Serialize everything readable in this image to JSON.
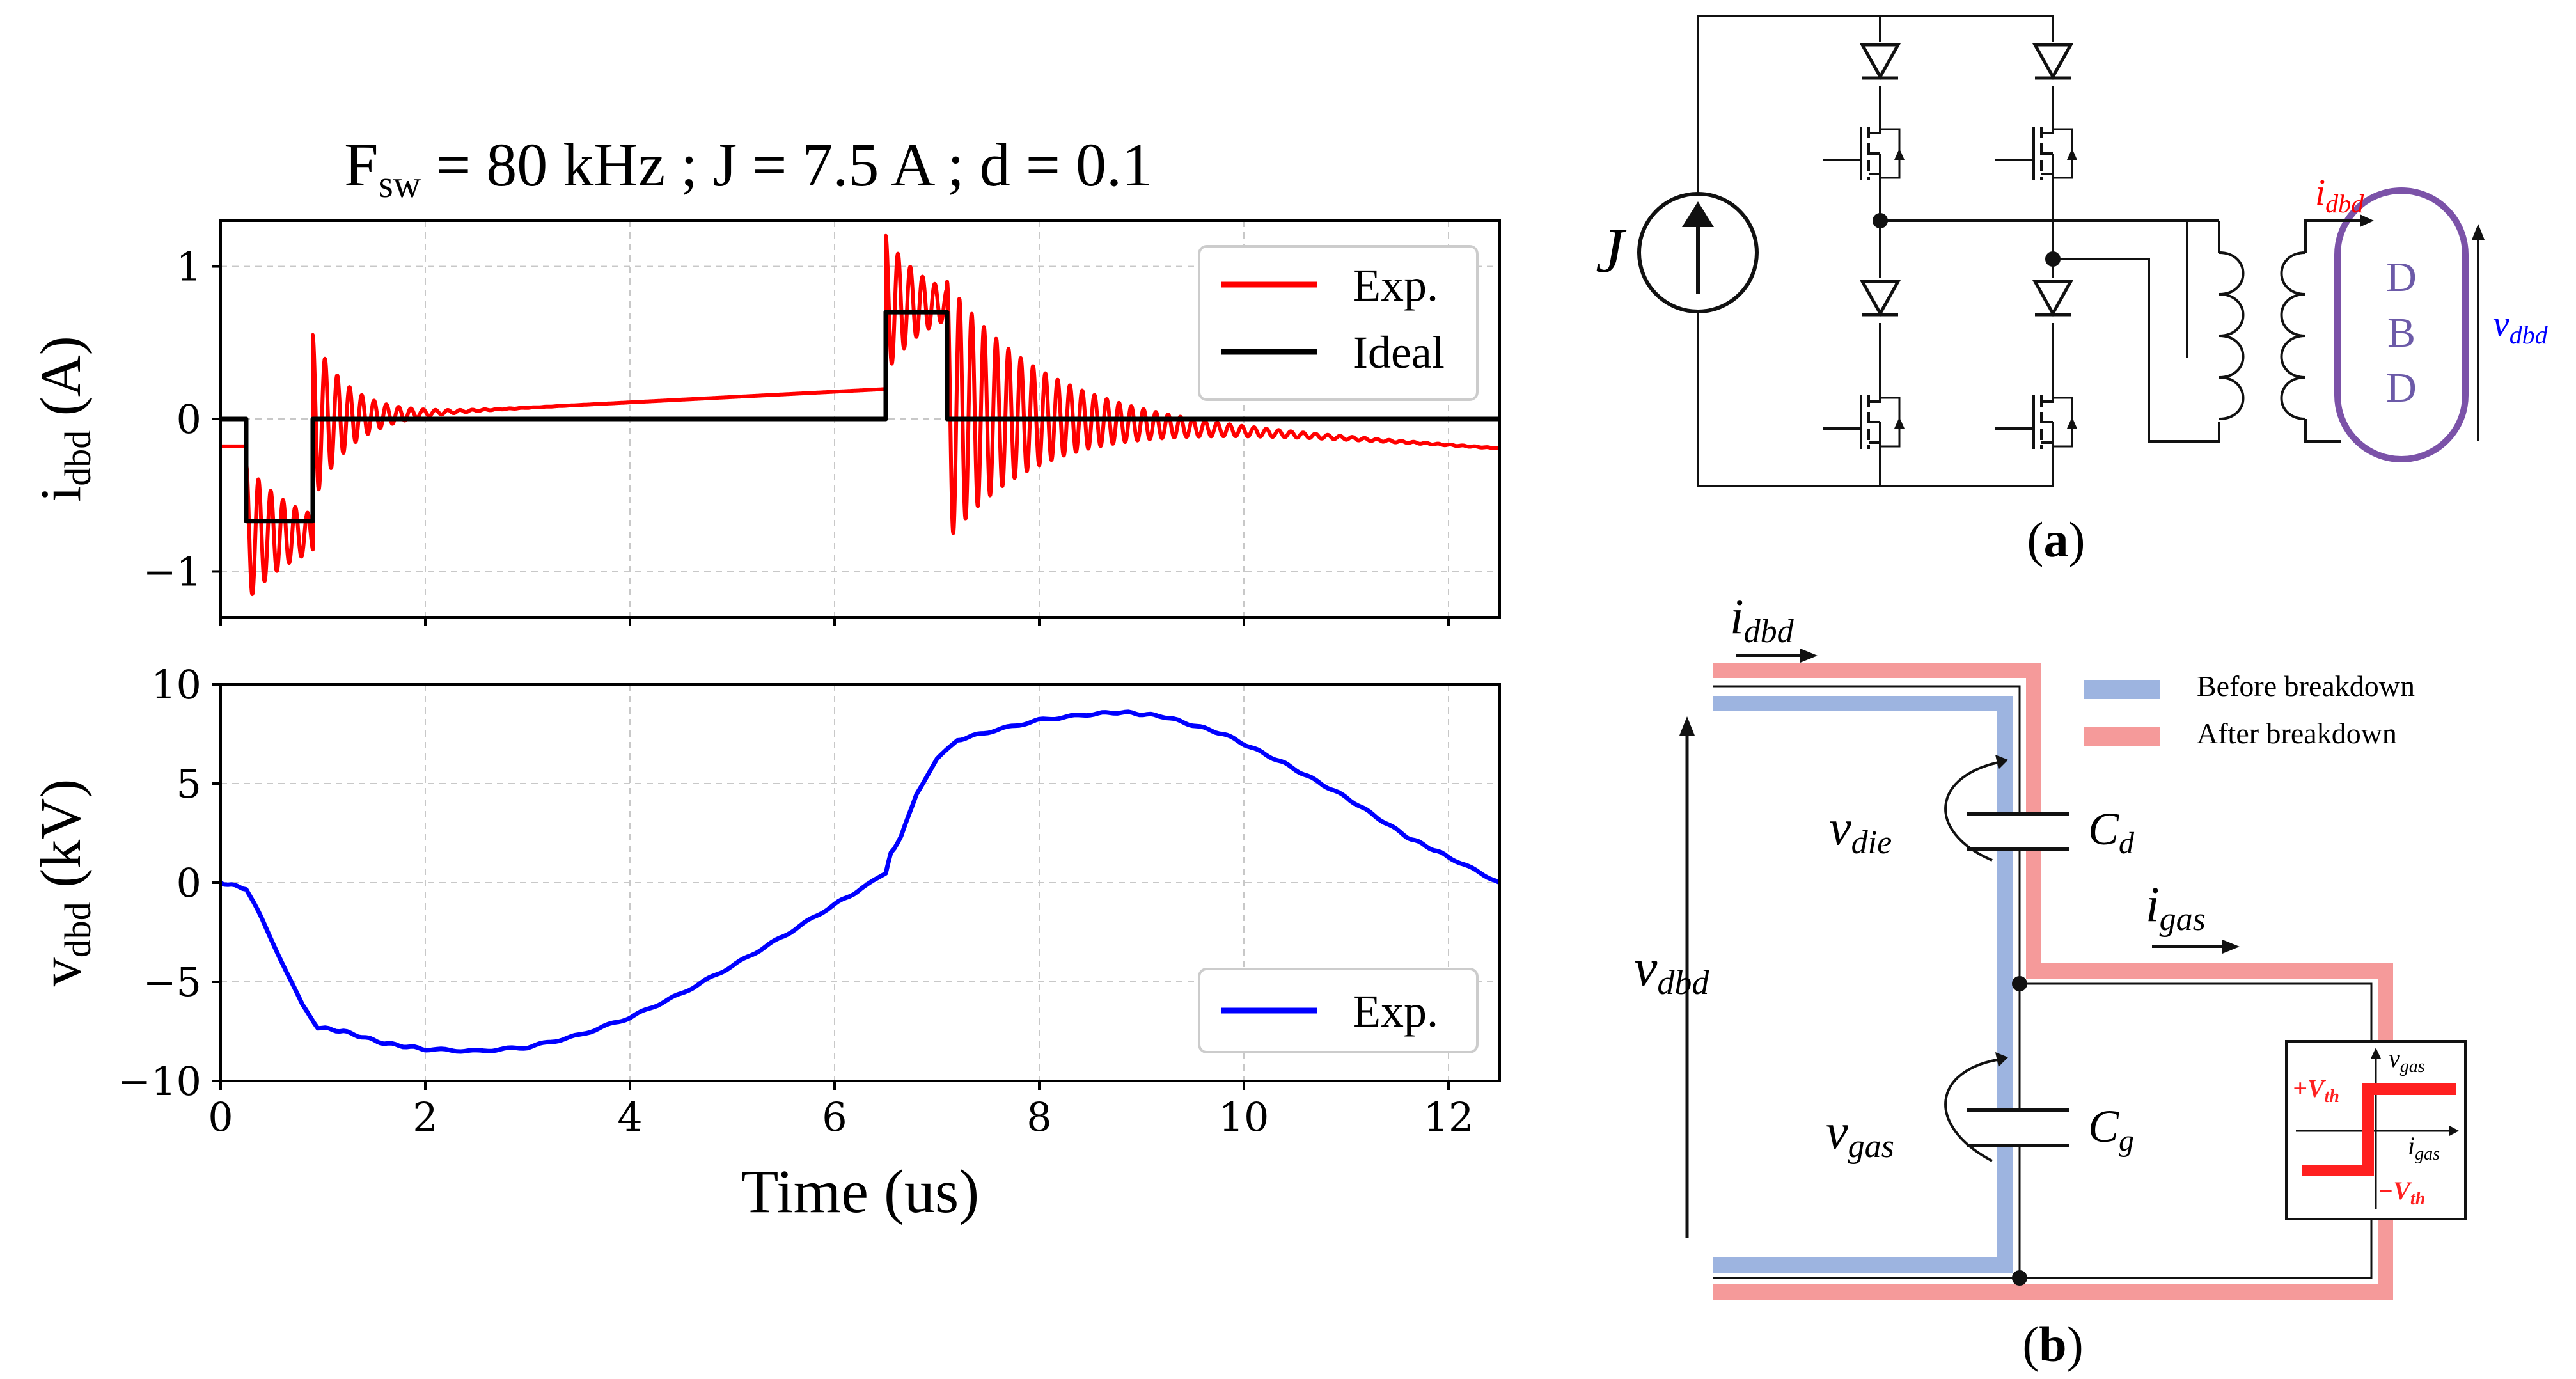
{
  "chart_data": [
    {
      "type": "line",
      "title": "F_sw = 80 kHz ; J = 7.5 A ; d = 0.1",
      "title_parts": {
        "f": "F",
        "sw": "sw",
        "rest": " = 80 kHz ; J = 7.5 A ; d = 0.1"
      },
      "xlabel": "",
      "ylabel": "i_dbd (A)",
      "ylabel_parts": {
        "i": "i",
        "sub": "dbd",
        "unit": " (A)"
      },
      "xlim": [
        0,
        12.5
      ],
      "ylim": [
        -1.3,
        1.3
      ],
      "xticks": [
        0,
        2,
        4,
        6,
        8,
        10,
        12
      ],
      "yticks": [
        -1,
        0,
        1
      ],
      "ytick_labels": [
        "−1",
        "0",
        "1"
      ],
      "grid": true,
      "legend": {
        "position": "top-right",
        "entries": [
          "Exp.",
          "Ideal"
        ]
      },
      "series": [
        {
          "name": "Exp.",
          "color": "#ff0000",
          "description": "ringing current",
          "segments": [
            {
              "x0": 0.0,
              "x1": 0.25,
              "base": -0.18,
              "slope": 0.0,
              "amp": 0.0,
              "period": 0.12,
              "tau": 1
            },
            {
              "x0": 0.25,
              "x1": 0.9,
              "base": -0.75,
              "slope": 0.0,
              "amp": 0.45,
              "period": 0.12,
              "tau": 0.5
            },
            {
              "x0": 0.9,
              "x1": 6.5,
              "base": 0.0,
              "slope": 0.035,
              "amp": 0.55,
              "period": 0.12,
              "tau": 0.35
            },
            {
              "x0": 6.5,
              "x1": 7.1,
              "base": 0.75,
              "slope": 0.0,
              "amp": 0.45,
              "period": 0.12,
              "tau": 0.4
            },
            {
              "x0": 7.1,
              "x1": 12.5,
              "base": 0.05,
              "slope": -0.045,
              "amp": 0.85,
              "period": 0.12,
              "tau": 0.9
            }
          ]
        },
        {
          "name": "Ideal",
          "color": "#000000",
          "x": [
            0,
            0.25,
            0.25,
            0.9,
            0.9,
            6.5,
            6.5,
            7.1,
            7.1,
            12.5
          ],
          "y": [
            0,
            0,
            -0.67,
            -0.67,
            0,
            0,
            0.7,
            0.7,
            0,
            0
          ]
        }
      ]
    },
    {
      "type": "line",
      "xlabel": "Time (us)",
      "ylabel": "v_dbd (kV)",
      "ylabel_parts": {
        "v": "v",
        "sub": "dbd",
        "unit": " (kV)"
      },
      "xlim": [
        0,
        12.5
      ],
      "ylim": [
        -10,
        10
      ],
      "xticks": [
        0,
        2,
        4,
        6,
        8,
        10,
        12
      ],
      "yticks": [
        -10,
        -5,
        0,
        5,
        10
      ],
      "ytick_labels": [
        "−10",
        "−5",
        "0",
        "5",
        "10"
      ],
      "grid": true,
      "legend": {
        "position": "bottom-right",
        "entries": [
          "Exp."
        ]
      },
      "series": [
        {
          "name": "Exp.",
          "color": "#0000ff",
          "x": [
            0,
            0.25,
            0.4,
            0.6,
            0.8,
            0.95,
            1.2,
            1.6,
            2.0,
            2.5,
            3.0,
            3.5,
            4.0,
            4.5,
            5.0,
            5.5,
            6.0,
            6.3,
            6.5,
            6.55,
            6.65,
            6.8,
            7.0,
            7.2,
            7.5,
            8.0,
            8.5,
            8.8,
            9.2,
            9.8,
            10.4,
            11.0,
            11.6,
            12.0,
            12.5
          ],
          "y": [
            0,
            -0.3,
            -1.8,
            -4.0,
            -6.2,
            -7.3,
            -7.5,
            -8.1,
            -8.4,
            -8.5,
            -8.3,
            -7.7,
            -6.8,
            -5.6,
            -4.2,
            -2.7,
            -1.1,
            -0.2,
            0.5,
            1.5,
            2.3,
            4.5,
            6.2,
            7.2,
            7.6,
            8.2,
            8.5,
            8.6,
            8.4,
            7.5,
            6.0,
            4.3,
            2.3,
            1.3,
            0.0
          ]
        }
      ]
    }
  ],
  "circuit_a": {
    "source_label": "J",
    "current_label": "i_dbd",
    "current_parts": {
      "i": "i",
      "sub": "dbd"
    },
    "dbd_letters": [
      "D",
      "B",
      "D"
    ],
    "voltage_parts": {
      "v": "v",
      "sub": "dbd"
    },
    "caption": "(a)",
    "caption_parts": {
      "open": "(",
      "letter": "a",
      "close": ")"
    },
    "colors": {
      "current": "#ff0000",
      "voltage": "#0000ff",
      "dbd": "#7b52a8",
      "dbd_text": "#6c5aa8"
    }
  },
  "circuit_b": {
    "current_in_parts": {
      "i": "i",
      "sub": "dbd"
    },
    "v_dbd_parts": {
      "v": "v",
      "sub": "dbd"
    },
    "v_die_parts": {
      "v": "v",
      "sub": "die"
    },
    "v_gas_parts": {
      "v": "v",
      "sub": "gas"
    },
    "i_gas_parts": {
      "i": "i",
      "sub": "gas"
    },
    "cd_parts": {
      "c": "C",
      "sub": "d"
    },
    "cg_parts": {
      "c": "C",
      "sub": "g"
    },
    "legend": [
      "Before breakdown",
      "After breakdown"
    ],
    "inset": {
      "vgas_parts": {
        "v": "v",
        "sub": "gas"
      },
      "igas_parts": {
        "i": "i",
        "sub": "gas"
      },
      "pos_parts": {
        "prefix": "+V",
        "sub": "th"
      },
      "neg_parts": {
        "prefix": "−V",
        "sub": "th"
      }
    },
    "caption_parts": {
      "open": "(",
      "letter": "b",
      "close": ")"
    },
    "colors": {
      "before": "#9db4e0",
      "after": "#f59a9a",
      "threshold": "#ff2020"
    }
  }
}
